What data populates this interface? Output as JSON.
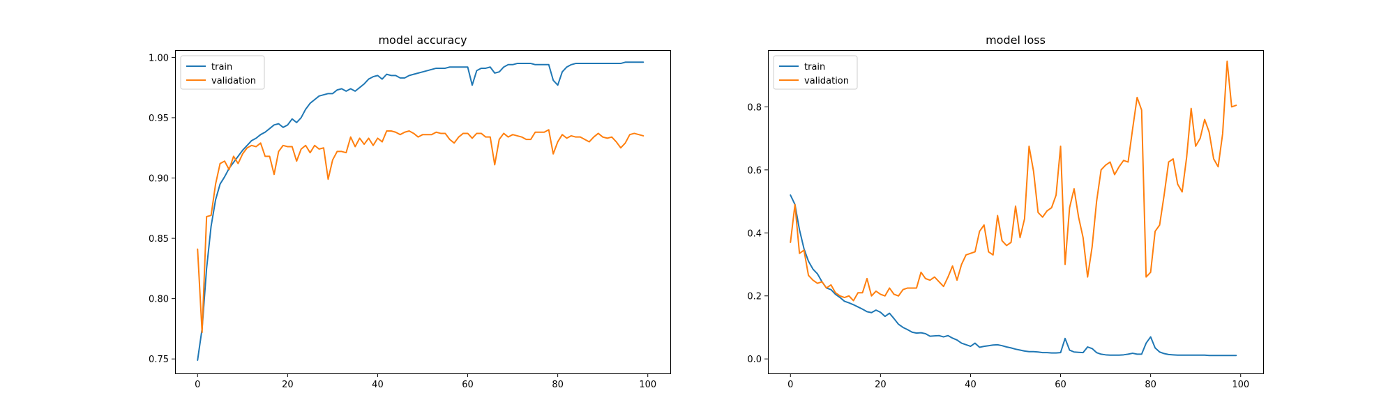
{
  "chart_data": [
    {
      "type": "line",
      "title": "model accuracy",
      "xlabel": "",
      "ylabel": "",
      "xlim": [
        -5,
        105
      ],
      "ylim": [
        0.738,
        1.006
      ],
      "xticks": [
        0,
        20,
        40,
        60,
        80,
        100
      ],
      "xtick_labels": [
        "0",
        "20",
        "40",
        "60",
        "80",
        "100"
      ],
      "yticks": [
        0.75,
        0.8,
        0.85,
        0.9,
        0.95,
        1.0
      ],
      "ytick_labels": [
        "0.75",
        "0.80",
        "0.85",
        "0.90",
        "0.95",
        "1.00"
      ],
      "grid": false,
      "legend": "top-left",
      "x": [
        0,
        1,
        2,
        3,
        4,
        5,
        6,
        7,
        8,
        9,
        10,
        11,
        12,
        13,
        14,
        15,
        16,
        17,
        18,
        19,
        20,
        21,
        22,
        23,
        24,
        25,
        26,
        27,
        28,
        29,
        30,
        31,
        32,
        33,
        34,
        35,
        36,
        37,
        38,
        39,
        40,
        41,
        42,
        43,
        44,
        45,
        46,
        47,
        48,
        49,
        50,
        51,
        52,
        53,
        54,
        55,
        56,
        57,
        58,
        59,
        60,
        61,
        62,
        63,
        64,
        65,
        66,
        67,
        68,
        69,
        70,
        71,
        72,
        73,
        74,
        75,
        76,
        77,
        78,
        79,
        80,
        81,
        82,
        83,
        84,
        85,
        86,
        87,
        88,
        89,
        90,
        91,
        92,
        93,
        94,
        95,
        96,
        97,
        98,
        99
      ],
      "series": [
        {
          "name": "train",
          "color": "#1f77b4",
          "values": [
            0.749,
            0.775,
            0.825,
            0.86,
            0.882,
            0.895,
            0.901,
            0.908,
            0.913,
            0.918,
            0.923,
            0.927,
            0.931,
            0.933,
            0.936,
            0.938,
            0.941,
            0.944,
            0.945,
            0.942,
            0.944,
            0.949,
            0.946,
            0.95,
            0.957,
            0.962,
            0.965,
            0.968,
            0.969,
            0.97,
            0.97,
            0.973,
            0.974,
            0.972,
            0.974,
            0.972,
            0.975,
            0.978,
            0.982,
            0.984,
            0.985,
            0.982,
            0.986,
            0.985,
            0.985,
            0.983,
            0.983,
            0.985,
            0.986,
            0.987,
            0.988,
            0.989,
            0.99,
            0.991,
            0.991,
            0.991,
            0.992,
            0.992,
            0.992,
            0.992,
            0.992,
            0.977,
            0.989,
            0.991,
            0.991,
            0.992,
            0.987,
            0.988,
            0.992,
            0.994,
            0.994,
            0.995,
            0.995,
            0.995,
            0.995,
            0.994,
            0.994,
            0.994,
            0.994,
            0.981,
            0.977,
            0.988,
            0.992,
            0.994,
            0.995,
            0.995,
            0.995,
            0.995,
            0.995,
            0.995,
            0.995,
            0.995,
            0.995,
            0.995,
            0.995,
            0.996,
            0.996,
            0.996,
            0.996,
            0.996
          ]
        },
        {
          "name": "validation",
          "color": "#ff7f0e",
          "values": [
            0.841,
            0.772,
            0.868,
            0.869,
            0.895,
            0.912,
            0.914,
            0.907,
            0.918,
            0.912,
            0.92,
            0.925,
            0.927,
            0.926,
            0.929,
            0.918,
            0.918,
            0.903,
            0.922,
            0.927,
            0.926,
            0.926,
            0.914,
            0.924,
            0.927,
            0.921,
            0.927,
            0.924,
            0.925,
            0.899,
            0.915,
            0.922,
            0.922,
            0.921,
            0.934,
            0.926,
            0.933,
            0.928,
            0.933,
            0.927,
            0.933,
            0.93,
            0.939,
            0.939,
            0.938,
            0.936,
            0.938,
            0.939,
            0.937,
            0.934,
            0.936,
            0.936,
            0.936,
            0.938,
            0.937,
            0.937,
            0.932,
            0.929,
            0.934,
            0.937,
            0.937,
            0.933,
            0.937,
            0.937,
            0.934,
            0.934,
            0.911,
            0.932,
            0.937,
            0.934,
            0.936,
            0.935,
            0.934,
            0.932,
            0.932,
            0.938,
            0.938,
            0.938,
            0.94,
            0.92,
            0.93,
            0.936,
            0.933,
            0.935,
            0.934,
            0.934,
            0.932,
            0.93,
            0.934,
            0.937,
            0.934,
            0.933,
            0.934,
            0.93,
            0.925,
            0.929,
            0.936,
            0.937,
            0.936,
            0.935
          ]
        }
      ]
    },
    {
      "type": "line",
      "title": "model loss",
      "xlabel": "",
      "ylabel": "",
      "xlim": [
        -5,
        105
      ],
      "ylim": [
        -0.046,
        0.98
      ],
      "xticks": [
        0,
        20,
        40,
        60,
        80,
        100
      ],
      "xtick_labels": [
        "0",
        "20",
        "40",
        "60",
        "80",
        "100"
      ],
      "yticks": [
        0.0,
        0.2,
        0.4,
        0.6,
        0.8
      ],
      "ytick_labels": [
        "0.0",
        "0.2",
        "0.4",
        "0.6",
        "0.8"
      ],
      "grid": false,
      "legend": "top-left",
      "x": [
        0,
        1,
        2,
        3,
        4,
        5,
        6,
        7,
        8,
        9,
        10,
        11,
        12,
        13,
        14,
        15,
        16,
        17,
        18,
        19,
        20,
        21,
        22,
        23,
        24,
        25,
        26,
        27,
        28,
        29,
        30,
        31,
        32,
        33,
        34,
        35,
        36,
        37,
        38,
        39,
        40,
        41,
        42,
        43,
        44,
        45,
        46,
        47,
        48,
        49,
        50,
        51,
        52,
        53,
        54,
        55,
        56,
        57,
        58,
        59,
        60,
        61,
        62,
        63,
        64,
        65,
        66,
        67,
        68,
        69,
        70,
        71,
        72,
        73,
        74,
        75,
        76,
        77,
        78,
        79,
        80,
        81,
        82,
        83,
        84,
        85,
        86,
        87,
        88,
        89,
        90,
        91,
        92,
        93,
        94,
        95,
        96,
        97,
        98,
        99
      ],
      "series": [
        {
          "name": "train",
          "color": "#1f77b4",
          "values": [
            0.52,
            0.49,
            0.41,
            0.35,
            0.31,
            0.285,
            0.27,
            0.245,
            0.225,
            0.22,
            0.205,
            0.195,
            0.183,
            0.178,
            0.172,
            0.165,
            0.158,
            0.15,
            0.147,
            0.155,
            0.148,
            0.135,
            0.145,
            0.128,
            0.11,
            0.1,
            0.093,
            0.085,
            0.082,
            0.083,
            0.08,
            0.072,
            0.073,
            0.074,
            0.07,
            0.074,
            0.066,
            0.06,
            0.05,
            0.045,
            0.04,
            0.05,
            0.037,
            0.04,
            0.042,
            0.044,
            0.045,
            0.042,
            0.038,
            0.035,
            0.031,
            0.028,
            0.025,
            0.023,
            0.023,
            0.022,
            0.02,
            0.02,
            0.019,
            0.019,
            0.02,
            0.065,
            0.028,
            0.022,
            0.021,
            0.02,
            0.038,
            0.033,
            0.02,
            0.015,
            0.013,
            0.012,
            0.012,
            0.012,
            0.013,
            0.015,
            0.018,
            0.015,
            0.015,
            0.05,
            0.07,
            0.035,
            0.022,
            0.017,
            0.014,
            0.013,
            0.012,
            0.012,
            0.012,
            0.012,
            0.012,
            0.012,
            0.012,
            0.011,
            0.011,
            0.011,
            0.011,
            0.011,
            0.011,
            0.011
          ]
        },
        {
          "name": "validation",
          "color": "#ff7f0e",
          "values": [
            0.37,
            0.49,
            0.335,
            0.345,
            0.265,
            0.25,
            0.24,
            0.245,
            0.225,
            0.235,
            0.21,
            0.2,
            0.195,
            0.2,
            0.185,
            0.21,
            0.21,
            0.255,
            0.2,
            0.215,
            0.205,
            0.2,
            0.225,
            0.205,
            0.2,
            0.22,
            0.225,
            0.225,
            0.225,
            0.275,
            0.255,
            0.25,
            0.26,
            0.245,
            0.23,
            0.26,
            0.295,
            0.25,
            0.3,
            0.33,
            0.335,
            0.34,
            0.405,
            0.425,
            0.34,
            0.33,
            0.455,
            0.375,
            0.36,
            0.37,
            0.485,
            0.385,
            0.445,
            0.675,
            0.595,
            0.465,
            0.45,
            0.47,
            0.48,
            0.52,
            0.675,
            0.3,
            0.48,
            0.54,
            0.45,
            0.385,
            0.26,
            0.355,
            0.5,
            0.6,
            0.615,
            0.625,
            0.585,
            0.61,
            0.63,
            0.625,
            0.73,
            0.83,
            0.79,
            0.26,
            0.275,
            0.405,
            0.425,
            0.52,
            0.625,
            0.635,
            0.555,
            0.53,
            0.64,
            0.795,
            0.675,
            0.7,
            0.76,
            0.72,
            0.635,
            0.61,
            0.715,
            0.945,
            0.8,
            0.805
          ]
        }
      ]
    }
  ]
}
